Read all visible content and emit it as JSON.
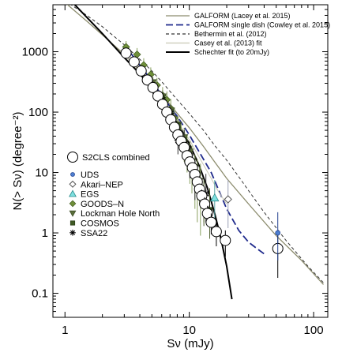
{
  "chart_data": {
    "type": "scatter",
    "xlabel": "Sν (mJy)",
    "ylabel": "N(> Sν) (degree⁻²)",
    "x_scale": "log",
    "y_scale": "log",
    "xlim": [
      0.8,
      130
    ],
    "ylim": [
      0.04,
      6000
    ],
    "x_ticks": [
      1,
      10,
      100
    ],
    "x_tick_labels": [
      "1",
      "10",
      "100"
    ],
    "y_ticks": [
      0.1,
      1,
      10,
      100,
      1000
    ],
    "y_tick_labels": [
      "0.1",
      "1",
      "10",
      "100",
      "1000"
    ],
    "legend_lines": [
      {
        "label": "GALFORM (Lacey et al. 2015)",
        "color": "#8c8c6e",
        "dash": "solid"
      },
      {
        "label": "GALFORM single dish (Cowley et al. 2015)",
        "color": "#1f2a8c",
        "dash": "longdash"
      },
      {
        "label": "Bethermin et al. (2012)",
        "color": "#333333",
        "dash": "dash"
      },
      {
        "label": "Casey et al. (2013) fit",
        "color": "#c8c8b4",
        "dash": "solid"
      },
      {
        "label": "Schechter fit (to 20mJy)",
        "color": "#000000",
        "dash": "solid"
      }
    ],
    "legend_points": [
      {
        "label": "S2CLS combined",
        "marker": "open-circle"
      },
      {
        "label": "UDS",
        "marker": "blue-dot"
      },
      {
        "label": "Akari–NEP",
        "marker": "open-diamond"
      },
      {
        "label": "EGS",
        "marker": "cyan-triangle"
      },
      {
        "label": "GOODS–N",
        "marker": "green-diamond"
      },
      {
        "label": "Lockman Hole North",
        "marker": "green-triangle-down"
      },
      {
        "label": "COSMOS",
        "marker": "green-square"
      },
      {
        "label": "SSA22",
        "marker": "star"
      }
    ],
    "series": [
      {
        "name": "GALFORM (Lacey et al. 2015)",
        "kind": "line",
        "x": [
          1,
          1.5,
          2,
          3,
          4,
          5,
          6,
          8,
          10,
          13,
          16,
          20,
          30,
          50,
          80,
          120
        ],
        "y": [
          6500,
          3200,
          1900,
          900,
          480,
          300,
          200,
          95,
          55,
          27,
          15,
          8,
          3,
          0.9,
          0.35,
          0.14
        ]
      },
      {
        "name": "GALFORM single dish (Cowley et al. 2015)",
        "kind": "line",
        "x": [
          3,
          4,
          5,
          6,
          8,
          10,
          12,
          15,
          20,
          25,
          30,
          35,
          40
        ],
        "y": [
          1300,
          600,
          330,
          190,
          85,
          42,
          22,
          10,
          2.5,
          1.1,
          0.7,
          0.55,
          0.45
        ]
      },
      {
        "name": "Bethermin et al. (2012)",
        "kind": "line",
        "x": [
          1,
          1.5,
          2,
          3,
          4,
          5,
          6,
          8,
          10,
          13,
          16,
          20,
          25,
          30,
          40,
          60,
          90,
          120
        ],
        "y": [
          7000,
          4000,
          2600,
          1300,
          750,
          480,
          320,
          160,
          95,
          50,
          28,
          16,
          8.5,
          5,
          2.2,
          0.75,
          0.28,
          0.15
        ]
      },
      {
        "name": "Casey et al. (2013) fit",
        "kind": "line",
        "x": [
          3,
          4,
          5,
          6,
          8,
          10,
          12,
          15,
          17,
          20
        ],
        "y": [
          900,
          450,
          260,
          160,
          70,
          35,
          18,
          8,
          5,
          3
        ]
      },
      {
        "name": "Schechter fit (to 20mJy)",
        "kind": "line",
        "x": [
          1.2,
          1.5,
          2,
          3,
          4,
          5,
          6,
          8,
          10,
          12,
          14,
          16,
          18,
          20,
          22
        ],
        "y": [
          6000,
          3700,
          2000,
          800,
          430,
          250,
          155,
          66,
          30,
          13,
          5.5,
          2.1,
          0.8,
          0.28,
          0.08
        ]
      },
      {
        "name": "S2CLS combined",
        "kind": "points",
        "marker": "open-circle",
        "points": [
          [
            3.1,
            950,
            850,
            1060
          ],
          [
            3.6,
            680,
            610,
            750
          ],
          [
            4.1,
            480,
            430,
            530
          ],
          [
            4.6,
            340,
            300,
            380
          ],
          [
            5.1,
            255,
            230,
            280
          ],
          [
            5.6,
            185,
            165,
            205
          ],
          [
            6.1,
            135,
            120,
            150
          ],
          [
            6.6,
            100,
            90,
            110
          ],
          [
            7.1,
            75,
            67,
            83
          ],
          [
            7.6,
            56,
            50,
            62
          ],
          [
            8.1,
            42,
            37,
            47
          ],
          [
            8.6,
            33,
            29,
            37
          ],
          [
            9.1,
            26,
            22,
            30
          ],
          [
            9.6,
            19,
            16,
            22
          ],
          [
            10.1,
            15,
            12.5,
            17.5
          ],
          [
            10.6,
            12,
            10,
            14
          ],
          [
            11.1,
            9.3,
            7.6,
            11
          ],
          [
            11.6,
            7.0,
            5.6,
            8.4
          ],
          [
            12.1,
            5.3,
            4.1,
            6.5
          ],
          [
            12.6,
            4.1,
            3.0,
            5.2
          ],
          [
            13.3,
            3.0,
            2.1,
            3.9
          ],
          [
            14.0,
            2.1,
            1.4,
            2.8
          ],
          [
            15.0,
            1.5,
            0.95,
            2.1
          ],
          [
            16.5,
            1.05,
            0.6,
            1.5
          ],
          [
            19.5,
            0.75,
            0.4,
            1.1
          ],
          [
            51.5,
            0.55,
            0.18,
            1.0
          ]
        ]
      },
      {
        "name": "UDS",
        "kind": "points",
        "marker": "blue-dot",
        "points": [
          [
            51.5,
            1.0,
            0.35,
            2.2
          ]
        ]
      },
      {
        "name": "Akari–NEP",
        "kind": "points",
        "marker": "open-diamond",
        "points": [
          [
            6.5,
            110,
            70,
            160
          ],
          [
            7.6,
            62,
            38,
            95
          ],
          [
            20.5,
            3.6,
            1.2,
            7.5
          ]
        ]
      },
      {
        "name": "EGS",
        "kind": "points",
        "marker": "cyan-triangle",
        "points": [
          [
            16,
            3.8,
            1.6,
            7.5
          ]
        ]
      },
      {
        "name": "GOODS–N",
        "kind": "points",
        "marker": "green-diamond",
        "points": [
          [
            3.1,
            1200,
            900,
            1500
          ],
          [
            3.8,
            900,
            650,
            1150
          ],
          [
            4.3,
            600,
            430,
            780
          ],
          [
            4.9,
            420,
            300,
            550
          ],
          [
            5.5,
            280,
            200,
            370
          ],
          [
            6.1,
            190,
            130,
            260
          ],
          [
            6.6,
            160,
            105,
            220
          ],
          [
            7.1,
            115,
            75,
            165
          ],
          [
            7.6,
            80,
            50,
            120
          ],
          [
            8.1,
            55,
            32,
            85
          ],
          [
            8.6,
            40,
            22,
            65
          ],
          [
            9.1,
            30,
            15,
            50
          ],
          [
            9.6,
            22,
            10,
            40
          ],
          [
            10.1,
            16,
            6.5,
            32
          ],
          [
            10.5,
            13,
            4.5,
            28
          ],
          [
            11.1,
            8.5,
            2.5,
            20
          ],
          [
            11.6,
            6.5,
            1.5,
            17
          ],
          [
            12.3,
            5,
            0.9,
            14
          ]
        ]
      },
      {
        "name": "Lockman Hole North",
        "kind": "points",
        "marker": "green-triangle-down",
        "points": [
          [
            5.1,
            310,
            240,
            380
          ],
          [
            6.1,
            180,
            130,
            230
          ],
          [
            7.1,
            105,
            75,
            135
          ],
          [
            8.1,
            62,
            42,
            85
          ],
          [
            9.1,
            38,
            24,
            55
          ],
          [
            10.1,
            22,
            13,
            33
          ],
          [
            11.1,
            12,
            6.5,
            19
          ],
          [
            12.1,
            7.2,
            3.5,
            12.5
          ],
          [
            13.1,
            3.8,
            1.5,
            7.5
          ]
        ]
      },
      {
        "name": "COSMOS",
        "kind": "points",
        "marker": "green-square",
        "points": [
          [
            3.1,
            1000,
            850,
            1150
          ],
          [
            4.1,
            520,
            440,
            600
          ],
          [
            5.1,
            280,
            230,
            330
          ],
          [
            6.1,
            170,
            135,
            205
          ],
          [
            7.1,
            100,
            78,
            122
          ],
          [
            8.1,
            60,
            45,
            75
          ],
          [
            9.1,
            34,
            24,
            45
          ],
          [
            10.1,
            19,
            12,
            27
          ],
          [
            11.1,
            11,
            6,
            17
          ],
          [
            12.1,
            6.5,
            3,
            11
          ],
          [
            13.1,
            3.6,
            1.3,
            7
          ],
          [
            14.6,
            2.4,
            0.8,
            5.5
          ]
        ]
      },
      {
        "name": "SSA22",
        "kind": "points",
        "marker": "star",
        "points": [
          [
            5.1,
            270,
            200,
            340
          ],
          [
            6.1,
            160,
            115,
            210
          ],
          [
            7.1,
            95,
            65,
            130
          ],
          [
            8.1,
            34,
            20,
            50
          ],
          [
            9.1,
            32,
            18,
            50
          ],
          [
            10.1,
            17,
            8,
            28
          ],
          [
            11.1,
            9,
            3.5,
            16
          ],
          [
            13.6,
            4.5,
            1.5,
            9.5
          ]
        ]
      }
    ]
  }
}
